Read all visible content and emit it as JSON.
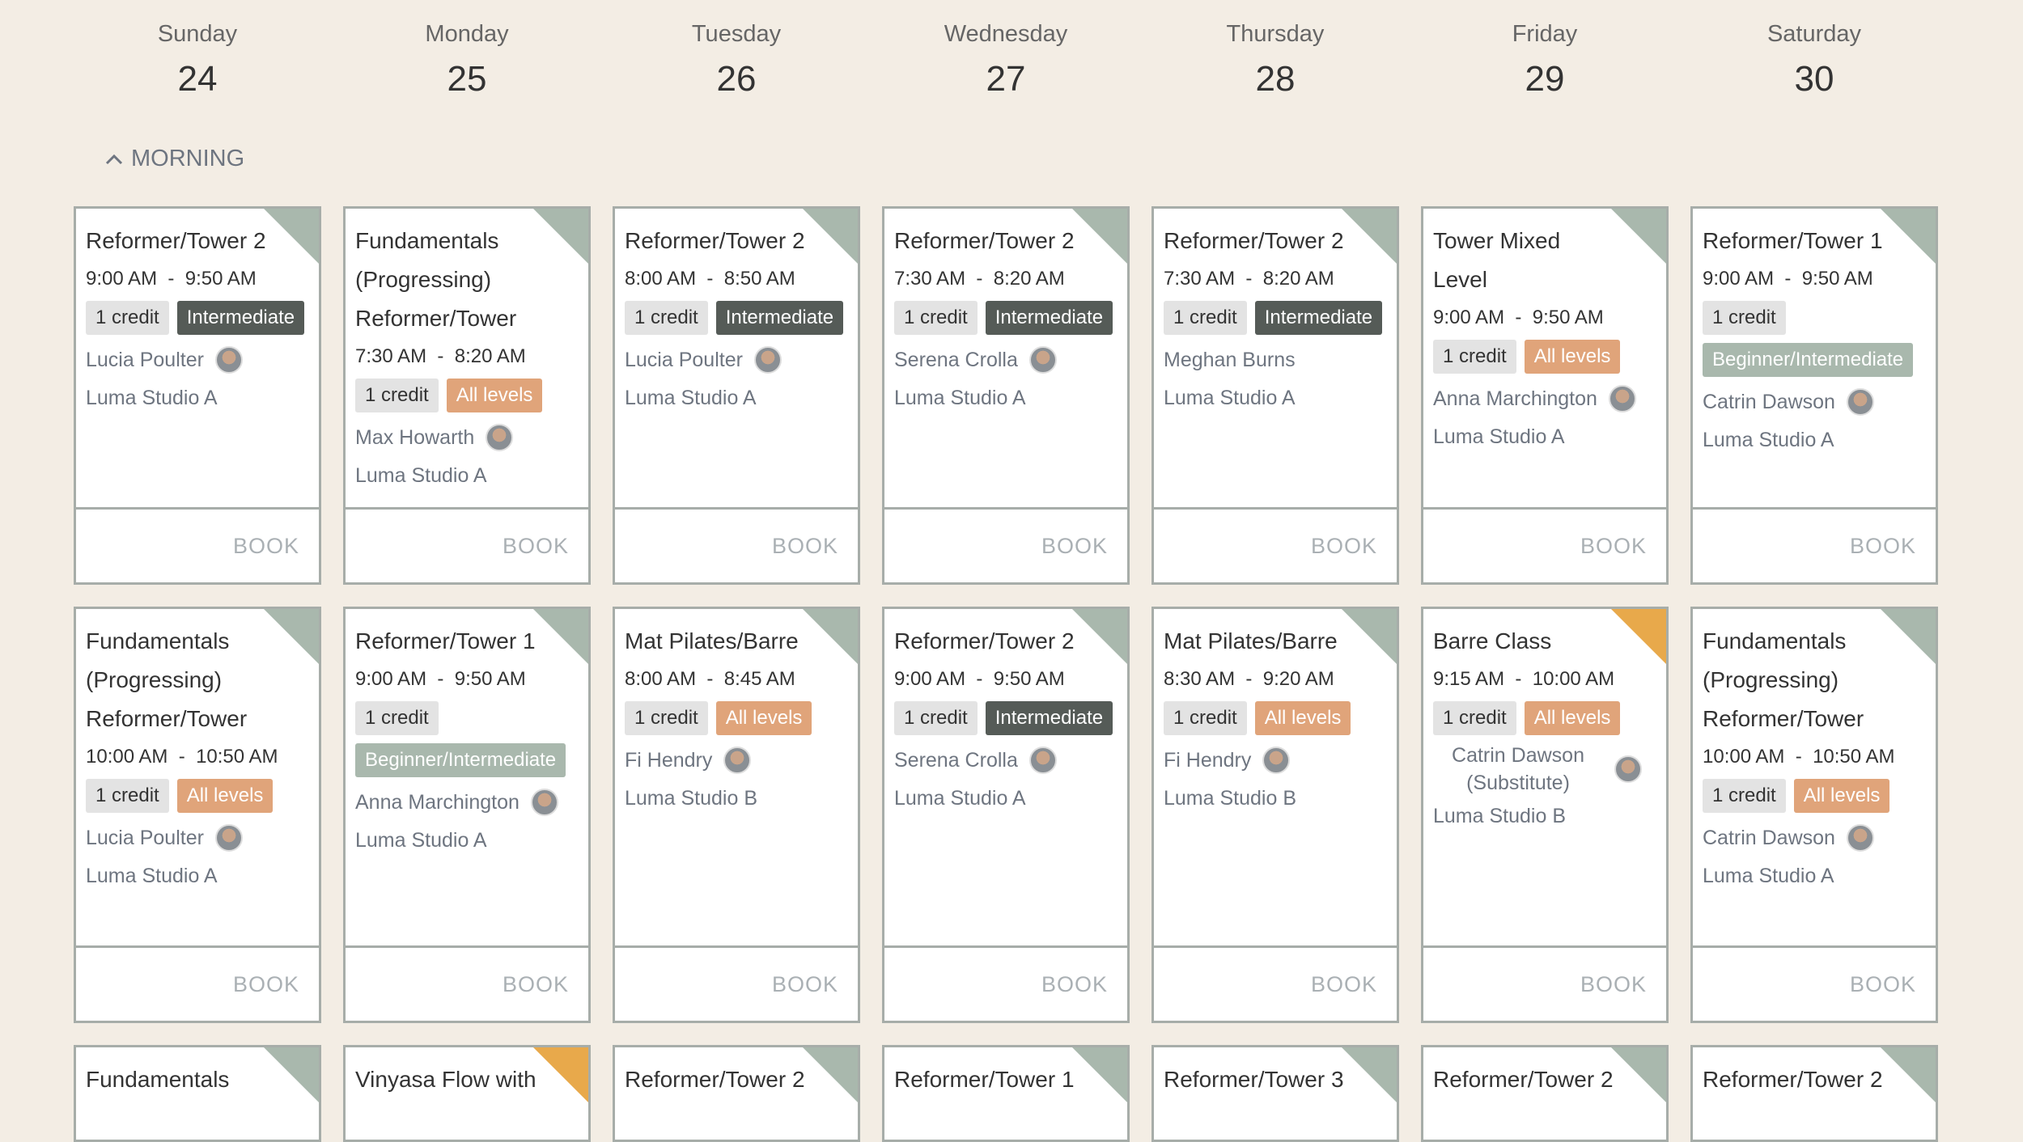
{
  "days": [
    {
      "name": "Sunday",
      "date": "24"
    },
    {
      "name": "Monday",
      "date": "25"
    },
    {
      "name": "Tuesday",
      "date": "26"
    },
    {
      "name": "Wednesday",
      "date": "27"
    },
    {
      "name": "Thursday",
      "date": "28"
    },
    {
      "name": "Friday",
      "date": "29"
    },
    {
      "name": "Saturday",
      "date": "30"
    }
  ],
  "section": "MORNING",
  "rows": [
    [
      {
        "title": "Reformer/Tower 2",
        "time": "9:00 AM  -  9:50 AM",
        "credit": "1 credit",
        "level": "Intermediate",
        "level_color": "#555b57",
        "instructor": "Lucia Poulter",
        "avatar": true,
        "location": "Luma Studio A",
        "book": "BOOK",
        "accent": "#a9b8ad"
      },
      {
        "title": "Fundamentals (Progressing) Reformer/Tower",
        "time": "7:30 AM  -  8:20 AM",
        "credit": "1 credit",
        "level": "All levels",
        "level_color": "#e0a47a",
        "instructor": "Max Howarth",
        "avatar": true,
        "location": "Luma Studio A",
        "book": "BOOK",
        "accent": "#a9b8ad"
      },
      {
        "title": "Reformer/Tower 2",
        "time": "8:00 AM  -  8:50 AM",
        "credit": "1 credit",
        "level": "Intermediate",
        "level_color": "#555b57",
        "instructor": "Lucia Poulter",
        "avatar": true,
        "location": "Luma Studio A",
        "book": "BOOK",
        "accent": "#a9b8ad"
      },
      {
        "title": "Reformer/Tower 2",
        "time": "7:30 AM  -  8:20 AM",
        "credit": "1 credit",
        "level": "Intermediate",
        "level_color": "#555b57",
        "instructor": "Serena Crolla",
        "avatar": true,
        "location": "Luma Studio A",
        "book": "BOOK",
        "accent": "#a9b8ad"
      },
      {
        "title": "Reformer/Tower 2",
        "time": "7:30 AM  -  8:20 AM",
        "credit": "1 credit",
        "level": "Intermediate",
        "level_color": "#555b57",
        "instructor": "Meghan Burns",
        "avatar": false,
        "location": "Luma Studio A",
        "book": "BOOK",
        "accent": "#a9b8ad"
      },
      {
        "title": "Tower Mixed Level",
        "time": "9:00 AM  -  9:50 AM",
        "credit": "1 credit",
        "level": "All levels",
        "level_color": "#e0a47a",
        "instructor": "Anna Marchington",
        "avatar": true,
        "location": "Luma Studio A",
        "book": "BOOK",
        "accent": "#a9b8ad"
      },
      {
        "title": "Reformer/Tower 1",
        "time": "9:00 AM  -  9:50 AM",
        "credit": "1 credit",
        "level": "Beginner/Intermediate",
        "level_color": "#a9b8ad",
        "instructor": "Catrin Dawson",
        "avatar": true,
        "location": "Luma Studio A",
        "book": "BOOK",
        "accent": "#a9b8ad"
      }
    ],
    [
      {
        "title": "Fundamentals (Progressing) Reformer/Tower",
        "time": "10:00 AM  -  10:50 AM",
        "credit": "1 credit",
        "level": "All levels",
        "level_color": "#e0a47a",
        "instructor": "Lucia Poulter",
        "avatar": true,
        "location": "Luma Studio A",
        "book": "BOOK",
        "accent": "#a9b8ad"
      },
      {
        "title": "Reformer/Tower 1",
        "time": "9:00 AM  -  9:50 AM",
        "credit": "1 credit",
        "level": "Beginner/Intermediate",
        "level_color": "#a9b8ad",
        "instructor": "Anna Marchington",
        "avatar": true,
        "location": "Luma Studio A",
        "book": "BOOK",
        "accent": "#a9b8ad"
      },
      {
        "title": "Mat Pilates/Barre",
        "time": "8:00 AM  -  8:45 AM",
        "credit": "1 credit",
        "level": "All levels",
        "level_color": "#e0a47a",
        "instructor": "Fi Hendry",
        "avatar": true,
        "location": "Luma Studio B",
        "book": "BOOK",
        "accent": "#a9b8ad"
      },
      {
        "title": "Reformer/Tower 2",
        "time": "9:00 AM  -  9:50 AM",
        "credit": "1 credit",
        "level": "Intermediate",
        "level_color": "#555b57",
        "instructor": "Serena Crolla",
        "avatar": true,
        "location": "Luma Studio A",
        "book": "BOOK",
        "accent": "#a9b8ad"
      },
      {
        "title": "Mat Pilates/Barre",
        "time": "8:30 AM  -  9:20 AM",
        "credit": "1 credit",
        "level": "All levels",
        "level_color": "#e0a47a",
        "instructor": "Fi Hendry",
        "avatar": true,
        "location": "Luma Studio B",
        "book": "BOOK",
        "accent": "#a9b8ad"
      },
      {
        "title": "Barre Class",
        "time": "9:15 AM  -  10:00 AM",
        "credit": "1 credit",
        "level": "All levels",
        "level_color": "#e0a47a",
        "instructor": "Catrin Dawson (Substitute)",
        "avatar": true,
        "location": "Luma Studio B",
        "book": "BOOK",
        "accent": "#e8a94b"
      },
      {
        "title": "Fundamentals (Progressing) Reformer/Tower",
        "time": "10:00 AM  -  10:50 AM",
        "credit": "1 credit",
        "level": "All levels",
        "level_color": "#e0a47a",
        "instructor": "Catrin Dawson",
        "avatar": true,
        "location": "Luma Studio A",
        "book": "BOOK",
        "accent": "#a9b8ad"
      }
    ],
    [
      {
        "title": "Fundamentals",
        "accent": "#a9b8ad"
      },
      {
        "title": "Vinyasa Flow with",
        "accent": "#e8a94b"
      },
      {
        "title": "Reformer/Tower 2",
        "accent": "#a9b8ad"
      },
      {
        "title": "Reformer/Tower 1",
        "accent": "#a9b8ad"
      },
      {
        "title": "Reformer/Tower 3",
        "accent": "#a9b8ad"
      },
      {
        "title": "Reformer/Tower 2",
        "accent": "#a9b8ad"
      },
      {
        "title": "Reformer/Tower 2",
        "accent": "#a9b8ad"
      }
    ]
  ]
}
